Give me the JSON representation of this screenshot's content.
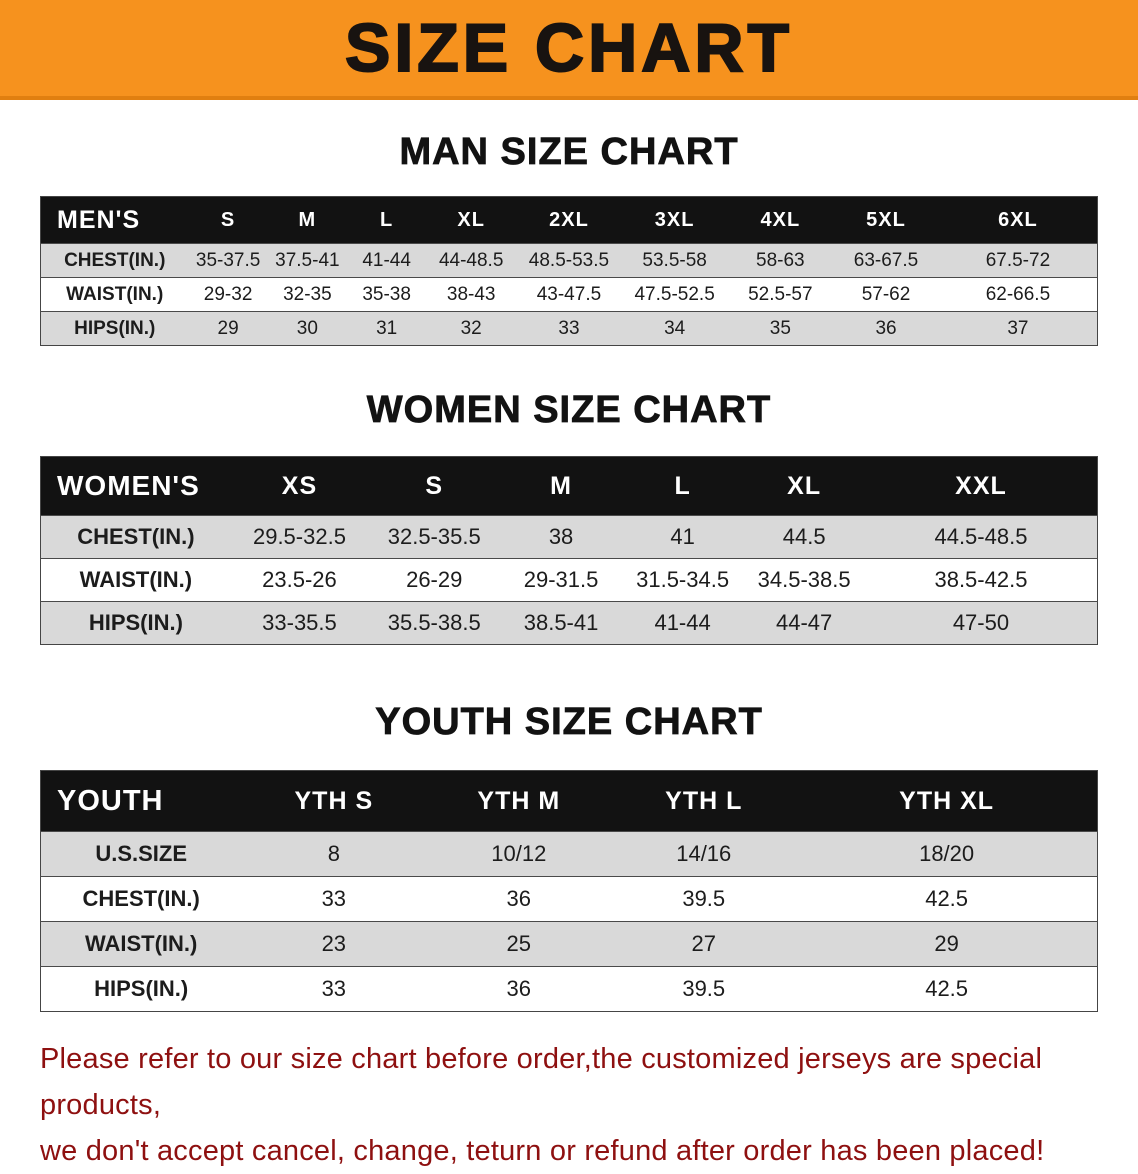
{
  "banner": {
    "title": "SIZE CHART"
  },
  "colors": {
    "banner_bg": "#f6921e",
    "header_row_bg": "#121212",
    "alt_row_bg": "#d9d9d9",
    "footer_text": "#8e1010"
  },
  "sections": [
    {
      "heading": "MAN SIZE CHART"
    },
    {
      "heading": "WOMEN SIZE CHART"
    },
    {
      "heading": "YOUTH SIZE CHART"
    }
  ],
  "tables": {
    "mens": {
      "header": [
        "MEN'S",
        "S",
        "M",
        "L",
        "XL",
        "2XL",
        "3XL",
        "4XL",
        "5XL",
        "6XL"
      ],
      "rows": [
        [
          "CHEST(IN.)",
          "35-37.5",
          "37.5-41",
          "41-44",
          "44-48.5",
          "48.5-53.5",
          "53.5-58",
          "58-63",
          "63-67.5",
          "67.5-72"
        ],
        [
          "WAIST(IN.)",
          "29-32",
          "32-35",
          "35-38",
          "38-43",
          "43-47.5",
          "47.5-52.5",
          "52.5-57",
          "57-62",
          "62-66.5"
        ],
        [
          "HIPS(IN.)",
          "29",
          "30",
          "31",
          "32",
          "33",
          "34",
          "35",
          "36",
          "37"
        ]
      ]
    },
    "womens": {
      "header": [
        "WOMEN'S",
        "XS",
        "S",
        "M",
        "L",
        "XL",
        "XXL"
      ],
      "rows": [
        [
          "CHEST(IN.)",
          "29.5-32.5",
          "32.5-35.5",
          "38",
          "41",
          "44.5",
          "44.5-48.5"
        ],
        [
          "WAIST(IN.)",
          "23.5-26",
          "26-29",
          "29-31.5",
          "31.5-34.5",
          "34.5-38.5",
          "38.5-42.5"
        ],
        [
          "HIPS(IN.)",
          "33-35.5",
          "35.5-38.5",
          "38.5-41",
          "41-44",
          "44-47",
          "47-50"
        ]
      ]
    },
    "youth": {
      "header": [
        "YOUTH",
        "YTH S",
        "YTH M",
        "YTH L",
        "YTH XL"
      ],
      "rows": [
        [
          "U.S.SIZE",
          "8",
          "10/12",
          "14/16",
          "18/20"
        ],
        [
          "CHEST(IN.)",
          "33",
          "36",
          "39.5",
          "42.5"
        ],
        [
          "WAIST(IN.)",
          "23",
          "25",
          "27",
          "29"
        ],
        [
          "HIPS(IN.)",
          "33",
          "36",
          "39.5",
          "42.5"
        ]
      ]
    }
  },
  "footer": {
    "line1": "Please refer to our size chart before order,the customized jerseys are special products,",
    "line2": "we don't accept cancel, change, teturn or refund after order has been placed!"
  }
}
